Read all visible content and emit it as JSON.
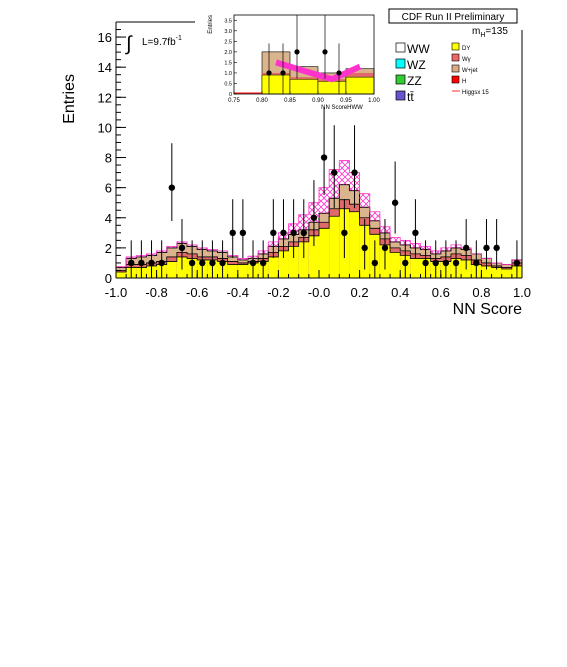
{
  "chart_data": {
    "type": "histogram",
    "header": "CDF Run II Preliminary",
    "luminosity_label": "L=9.7fb",
    "luminosity_exponent": "-1",
    "integral_symbol": "∫",
    "mass_label_main": "m",
    "mass_label_sub": "H",
    "mass_label_value": "=135",
    "xlabel": "NN Score",
    "ylabel": "Entries",
    "xlim": [
      -1.0,
      1.0
    ],
    "ylim": [
      0,
      17
    ],
    "xticks": [
      -1.0,
      -0.8,
      -0.6,
      -0.4,
      -0.2,
      0.0,
      0.2,
      0.4,
      0.6,
      0.8,
      1.0
    ],
    "xtick_labels": [
      "-1.0",
      "-0.8",
      "-0.6",
      "-0.4",
      "-0.2",
      "-0.0",
      "0.2",
      "0.4",
      "0.6",
      "0.8",
      "1.0"
    ],
    "yticks": [
      0,
      2,
      4,
      6,
      8,
      10,
      12,
      14,
      16
    ],
    "ytick_labels": [
      "0",
      "2",
      "4",
      "6",
      "8",
      "10",
      "12",
      "14",
      "16"
    ],
    "bin_width": 0.05,
    "bin_low_edges": [
      -1.0,
      -0.95,
      -0.9,
      -0.85,
      -0.8,
      -0.75,
      -0.7,
      -0.65,
      -0.6,
      -0.55,
      -0.5,
      -0.45,
      -0.4,
      -0.35,
      -0.3,
      -0.25,
      -0.2,
      -0.15,
      -0.1,
      -0.05,
      0.0,
      0.05,
      0.1,
      0.15,
      0.2,
      0.25,
      0.3,
      0.35,
      0.4,
      0.45,
      0.5,
      0.55,
      0.6,
      0.65,
      0.7,
      0.75,
      0.8,
      0.85,
      0.9,
      0.95
    ],
    "stack_fill": {
      "name": "DY",
      "values": [
        0.4,
        0.7,
        0.7,
        0.8,
        0.9,
        1.1,
        1.4,
        1.3,
        1.2,
        1.2,
        1.1,
        0.9,
        0.9,
        1.0,
        1.1,
        1.4,
        1.8,
        2.1,
        2.4,
        2.8,
        3.3,
        4.1,
        4.6,
        4.4,
        3.5,
        2.9,
        2.2,
        1.7,
        1.5,
        1.3,
        1.3,
        1.1,
        1.1,
        1.3,
        1.2,
        0.9,
        0.8,
        0.7,
        0.6,
        0.8
      ]
    },
    "stack_outline_1": [
      0.5,
      0.9,
      0.9,
      1.0,
      1.1,
      1.4,
      1.7,
      1.6,
      1.4,
      1.4,
      1.3,
      1.1,
      1.0,
      1.1,
      1.3,
      1.7,
      2.1,
      2.4,
      2.7,
      3.2,
      3.7,
      4.6,
      5.2,
      4.9,
      4.0,
      3.3,
      2.6,
      2.0,
      1.8,
      1.6,
      1.5,
      1.3,
      1.4,
      1.6,
      1.5,
      1.2,
      1.0,
      0.8,
      0.7,
      1.0
    ],
    "stack_total": [
      0.7,
      1.3,
      1.4,
      1.5,
      1.7,
      2.0,
      2.3,
      2.1,
      1.9,
      1.8,
      1.7,
      1.4,
      1.2,
      1.3,
      1.6,
      2.1,
      2.6,
      2.9,
      3.2,
      3.7,
      4.3,
      5.3,
      6.2,
      5.8,
      4.7,
      3.8,
      3.0,
      2.4,
      2.2,
      2.0,
      1.9,
      1.6,
      1.8,
      2.0,
      1.9,
      1.6,
      1.3,
      1.0,
      0.9,
      1.2
    ],
    "signal": {
      "name": "Higgsx 15",
      "values": [
        0.75,
        1.4,
        1.5,
        1.6,
        1.8,
        2.1,
        2.4,
        2.2,
        2.0,
        1.9,
        1.8,
        1.5,
        1.3,
        1.45,
        1.8,
        2.4,
        3.0,
        3.6,
        4.2,
        5.0,
        6.0,
        7.2,
        7.8,
        7.0,
        5.6,
        4.4,
        3.4,
        2.7,
        2.5,
        2.3,
        2.1,
        1.8,
        2.0,
        2.2,
        2.0,
        1.6,
        1.3,
        1.0,
        0.9,
        1.2
      ],
      "color": "#ff33cc"
    },
    "data_points": {
      "x": [
        -0.925,
        -0.875,
        -0.825,
        -0.775,
        -0.725,
        -0.675,
        -0.625,
        -0.575,
        -0.525,
        -0.475,
        -0.425,
        -0.375,
        -0.325,
        -0.275,
        -0.225,
        -0.175,
        -0.125,
        -0.075,
        -0.025,
        0.025,
        0.075,
        0.125,
        0.175,
        0.225,
        0.275,
        0.325,
        0.375,
        0.425,
        0.475,
        0.525,
        0.575,
        0.625,
        0.675,
        0.725,
        0.775,
        0.825,
        0.875,
        0.925,
        0.975
      ],
      "y": [
        1,
        1,
        1,
        1,
        6,
        2,
        1,
        1,
        1,
        1,
        3,
        3,
        1,
        1,
        3,
        3,
        3,
        3,
        4,
        8,
        7,
        3,
        7,
        2,
        1,
        2,
        5,
        1,
        3,
        1,
        1,
        1,
        1,
        2,
        1,
        2,
        2,
        0,
        1
      ]
    },
    "legend": {
      "header": "CDF Run II Preliminary",
      "col1": [
        {
          "label": "WW",
          "color": "#ffffff"
        },
        {
          "label": "WZ",
          "color": "#00ffff"
        },
        {
          "label": "ZZ",
          "color": "#33cc33"
        },
        {
          "label": "tt̄",
          "color": "#6655cc"
        }
      ],
      "col2": [
        {
          "label": "DY",
          "color": "#ffff00"
        },
        {
          "label": "Wγ",
          "color": "#ee6666"
        },
        {
          "label": "W+jet",
          "color": "#ddaa88"
        },
        {
          "label": "H",
          "color": "#ff0000"
        },
        {
          "label": "Higgsx 15",
          "color": "#ff3333"
        }
      ]
    },
    "inset": {
      "xlabel": "NN ScoreHWW",
      "ylabel": "Entries",
      "xlim": [
        0.75,
        1.0
      ],
      "ylim": [
        0,
        3.75
      ],
      "xticks": [
        0.75,
        0.8,
        0.85,
        0.9,
        0.95,
        1.0
      ],
      "xtick_labels": [
        "0.75",
        "0.80",
        "0.85",
        "0.90",
        "0.95",
        "1.00"
      ],
      "yticks": [
        0,
        0.5,
        1.0,
        1.5,
        2.0,
        2.5,
        3.0,
        3.5
      ],
      "ytick_labels": [
        "0",
        "0.5",
        "1.0",
        "1.5",
        "2.0",
        "2.5",
        "3.0",
        "3.5"
      ],
      "bin_low_edges": [
        0.75,
        0.8,
        0.85,
        0.9,
        0.95
      ],
      "dy": [
        0.0,
        0.9,
        0.7,
        0.6,
        0.8
      ],
      "outline": [
        0.0,
        1.0,
        0.8,
        0.7,
        1.0
      ],
      "total": [
        0.0,
        2.0,
        1.3,
        1.0,
        1.2
      ],
      "signal_x": [
        0.825,
        0.85,
        0.875,
        0.9,
        0.925,
        0.95,
        0.975
      ],
      "signal_y": [
        1.5,
        1.3,
        1.1,
        0.9,
        0.7,
        1.0,
        1.3
      ],
      "data_x": [
        0.8125,
        0.8375,
        0.8625,
        0.9125,
        0.9375
      ],
      "data_y": [
        1,
        1,
        2,
        2,
        1
      ]
    }
  }
}
